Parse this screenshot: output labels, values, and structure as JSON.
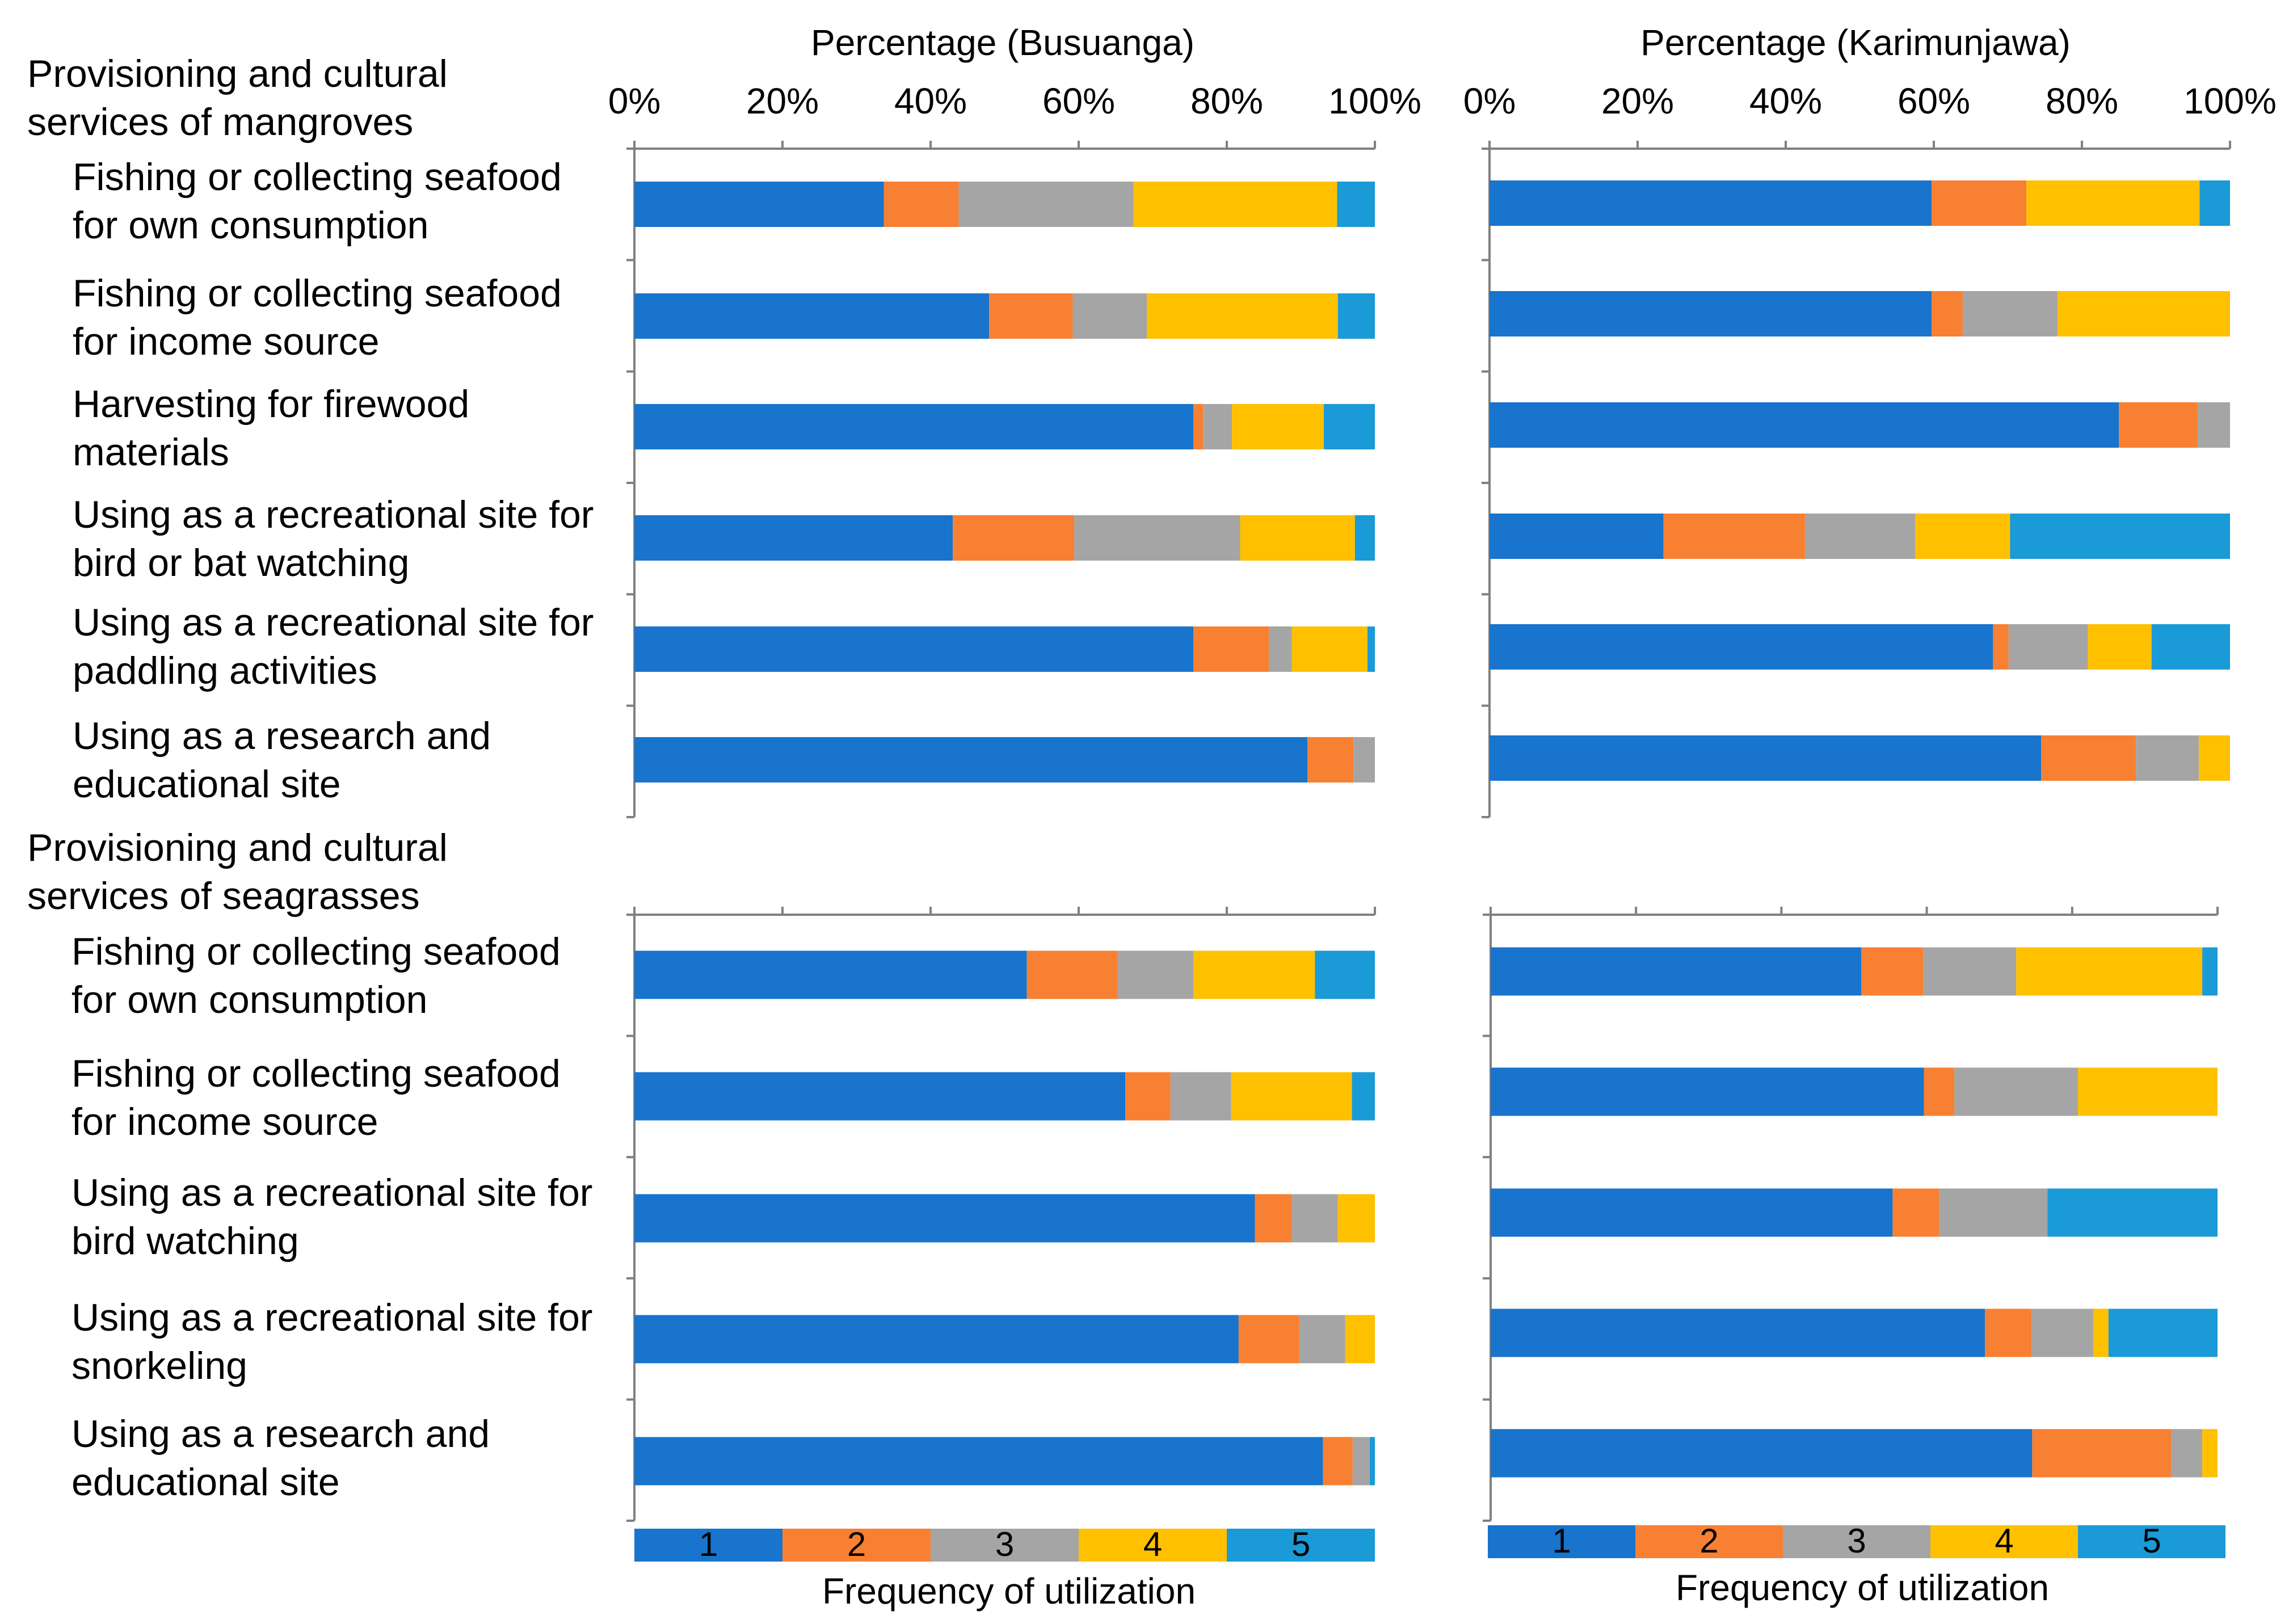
{
  "chart_data": {
    "type": "bar",
    "orientation": "horizontal",
    "stacked": true,
    "x_unit": "percent",
    "xlim": [
      0,
      100
    ],
    "x_ticks": [
      "0%",
      "20%",
      "40%",
      "60%",
      "80%",
      "100%"
    ],
    "legend": {
      "title": "Frequency of utilization",
      "placement": "bottom",
      "entries": [
        "1",
        "2",
        "3",
        "4",
        "5"
      ]
    },
    "colors": [
      "#1874cd",
      "#f88032",
      "#a5a5a5",
      "#ffc000",
      "#1a9ad6"
    ],
    "section_titles": [
      [
        "Provisioning and cultural",
        "services of mangroves"
      ],
      [
        "Provisioning and cultural",
        "services of seagrasses"
      ]
    ],
    "categories": {
      "mangroves": [
        [
          "Fishing or collecting seafood",
          "for own consumption"
        ],
        [
          "Fishing or collecting seafood",
          "for income source"
        ],
        [
          "Harvesting for firewood",
          "materials"
        ],
        [
          "Using as a recreational site for",
          "bird or bat watching"
        ],
        [
          "Using as a recreational site for",
          "paddling activities"
        ],
        [
          "Using as a research and",
          "educational site"
        ]
      ],
      "seagrasses": [
        [
          "Fishing or collecting seafood",
          "for own consumption"
        ],
        [
          "Fishing or collecting seafood",
          "for income source"
        ],
        [
          "Using as a recreational site for",
          "bird watching"
        ],
        [
          "Using as a recreational site for",
          "snorkeling"
        ],
        [
          "Using as a research and",
          "educational site"
        ]
      ]
    },
    "panels": [
      {
        "name": "busuanga-mangroves",
        "title": "Percentage (Busuanga)",
        "group": "mangroves",
        "values": [
          [
            33.7,
            10.1,
            23.6,
            27.5,
            5.1
          ],
          [
            47.9,
            11.3,
            10.0,
            25.8,
            5.0
          ],
          [
            75.5,
            1.3,
            3.9,
            12.4,
            6.9
          ],
          [
            43.0,
            16.4,
            22.4,
            15.5,
            2.7
          ],
          [
            75.5,
            10.2,
            3.1,
            10.2,
            1.0
          ],
          [
            90.9,
            6.2,
            2.9,
            0,
            0
          ]
        ]
      },
      {
        "name": "karimunjawa-mangroves",
        "title": "Percentage (Karimunjawa)",
        "group": "mangroves",
        "values": [
          [
            59.7,
            12.8,
            0,
            23.4,
            4.1
          ],
          [
            59.7,
            4.2,
            12.8,
            23.3,
            0
          ],
          [
            85.0,
            10.6,
            4.4,
            0,
            0
          ],
          [
            23.5,
            19.1,
            14.9,
            12.8,
            29.7
          ],
          [
            68.0,
            2.1,
            10.7,
            8.6,
            10.6
          ],
          [
            74.5,
            12.8,
            8.5,
            4.2,
            0
          ]
        ]
      },
      {
        "name": "busuanga-seagrasses",
        "title": "",
        "group": "seagrasses",
        "values": [
          [
            53.0,
            12.3,
            10.2,
            16.4,
            8.1
          ],
          [
            66.3,
            6.1,
            8.2,
            16.3,
            3.1
          ],
          [
            83.8,
            5.0,
            6.2,
            5.0,
            0
          ],
          [
            81.6,
            8.2,
            6.2,
            4.0,
            0
          ],
          [
            93.0,
            4.0,
            2.3,
            0,
            0.7
          ]
        ]
      },
      {
        "name": "karimunjawa-seagrasses",
        "title": "",
        "group": "seagrasses",
        "values": [
          [
            51.0,
            8.5,
            12.8,
            25.6,
            2.1
          ],
          [
            59.6,
            4.2,
            17.0,
            19.2,
            0
          ],
          [
            55.3,
            6.4,
            14.9,
            0,
            23.4
          ],
          [
            68.0,
            6.4,
            8.5,
            2.1,
            15.0
          ],
          [
            74.5,
            19.1,
            4.3,
            2.1,
            0
          ]
        ]
      }
    ]
  }
}
